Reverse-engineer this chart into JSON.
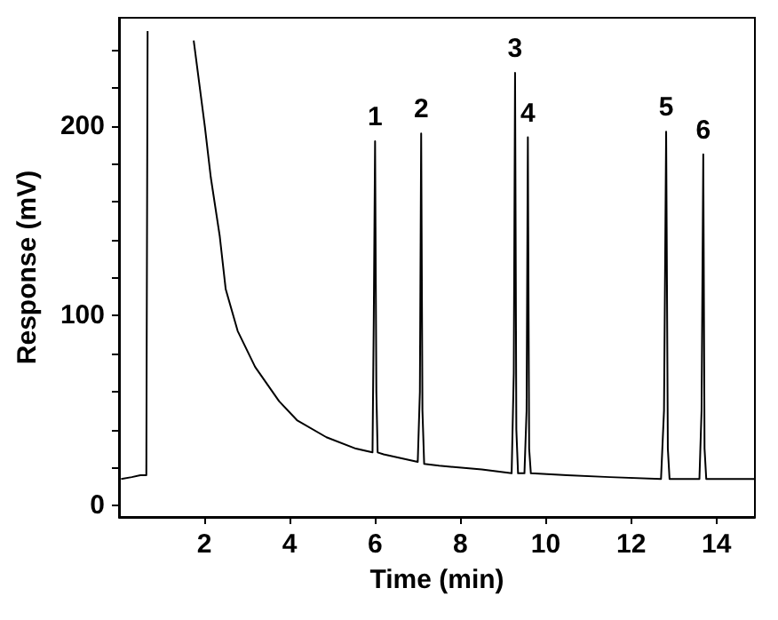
{
  "chart_data": {
    "type": "line",
    "xlabel": "Time (min)",
    "ylabel": "Response (mV)",
    "xlim": [
      0,
      14.9
    ],
    "xticks": [
      2,
      4,
      6,
      8,
      10,
      12,
      14
    ],
    "ylim": [
      -6,
      257
    ],
    "yticks": [
      0,
      {
        "value": 20,
        "label": null
      },
      {
        "value": 40,
        "label": null
      },
      {
        "value": 60,
        "label": null
      },
      {
        "value": 80,
        "label": null
      },
      100,
      {
        "value": 120,
        "label": null
      },
      {
        "value": 140,
        "label": null
      },
      {
        "value": 160,
        "label": null
      },
      {
        "value": 180,
        "label": null
      },
      200,
      {
        "value": 220,
        "label": null
      },
      {
        "value": 240,
        "label": null
      }
    ],
    "grid": false,
    "marker": "none",
    "line_style": "solid",
    "series": [
      {
        "color": "#000000",
        "x": [
          0.05,
          0.3,
          0.5,
          0.64,
          0.67,
          0.68,
          1.75,
          2.01,
          2.15,
          2.36,
          2.5,
          2.78,
          3.19,
          3.75,
          4.17,
          4.86,
          5.55,
          5.94,
          5.97,
          6.0,
          6.03,
          6.06,
          6.2,
          7.0,
          7.05,
          7.08,
          7.11,
          7.15,
          7.5,
          8.5,
          9.2,
          9.25,
          9.28,
          9.31,
          9.35,
          9.5,
          9.55,
          9.58,
          9.61,
          9.65,
          10.5,
          11.5,
          12.7,
          12.77,
          12.82,
          12.86,
          12.9,
          13.6,
          13.65,
          13.69,
          13.72,
          13.76,
          14.9
        ],
        "values": [
          14,
          15,
          16,
          16,
          250,
          null,
          245,
          200,
          173,
          142,
          114,
          92,
          73,
          55,
          45,
          36,
          30,
          28,
          100,
          192,
          60,
          28,
          27,
          23,
          60,
          196,
          50,
          22,
          21,
          19,
          17,
          70,
          228,
          40,
          17,
          17,
          50,
          194,
          30,
          17,
          16,
          15,
          14,
          50,
          197,
          30,
          14,
          14,
          50,
          185,
          30,
          14,
          14
        ]
      }
    ],
    "annotations": [
      {
        "text": "1",
        "x": 6.0,
        "y": 192
      },
      {
        "text": "2",
        "x": 7.08,
        "y": 196
      },
      {
        "text": "3",
        "x": 9.28,
        "y": 228
      },
      {
        "text": "4",
        "x": 9.58,
        "y": 194
      },
      {
        "text": "5",
        "x": 12.82,
        "y": 197
      },
      {
        "text": "6",
        "x": 13.69,
        "y": 185
      }
    ]
  }
}
